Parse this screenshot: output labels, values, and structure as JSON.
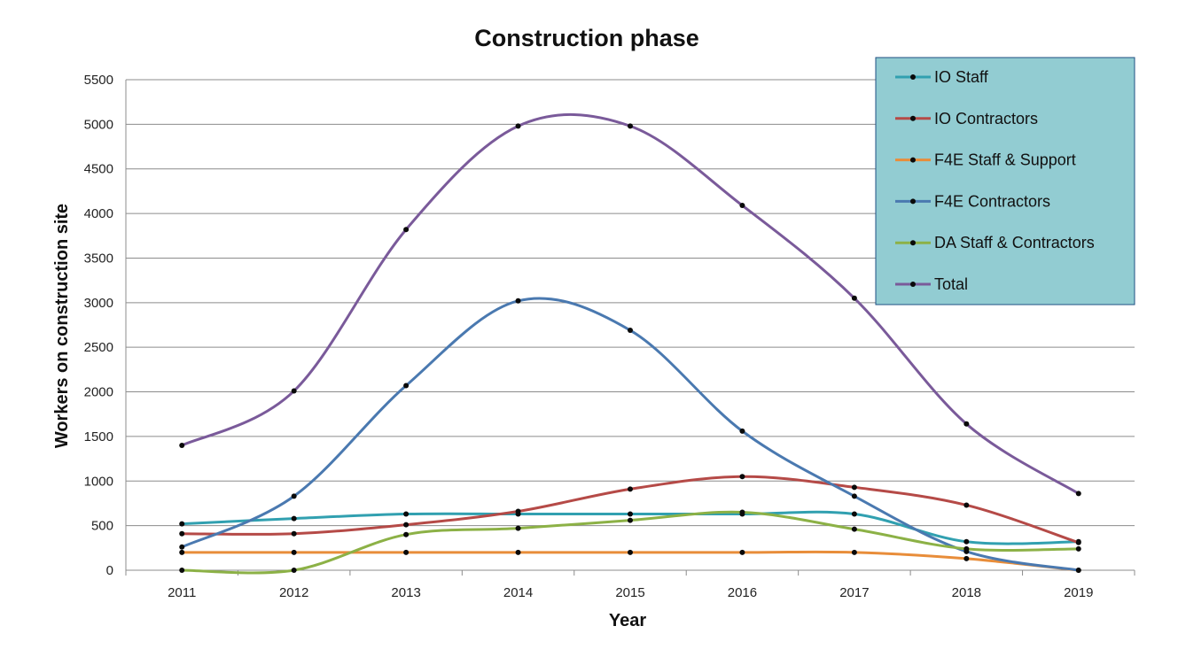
{
  "chart_data": {
    "type": "line",
    "title": "Construction phase",
    "xlabel": "Year",
    "ylabel": "Workers on construction site",
    "categories": [
      "2011",
      "2012",
      "2013",
      "2014",
      "2015",
      "2016",
      "2017",
      "2018",
      "2019"
    ],
    "ylim": [
      0,
      5500
    ],
    "yticks": [
      0,
      500,
      1000,
      1500,
      2000,
      2500,
      3000,
      3500,
      4000,
      4500,
      5000,
      5500
    ],
    "grid": true,
    "smooth": true,
    "legend_position": "top-right",
    "series": [
      {
        "name": "IO Staff",
        "color": "#31a0b0",
        "values": [
          520,
          580,
          630,
          630,
          630,
          630,
          630,
          320,
          320
        ]
      },
      {
        "name": "IO Contractors",
        "color": "#b54a47",
        "values": [
          410,
          410,
          510,
          660,
          910,
          1050,
          930,
          730,
          310
        ]
      },
      {
        "name": "F4E Staff & Support",
        "color": "#e88d3a",
        "values": [
          200,
          200,
          200,
          200,
          200,
          200,
          200,
          130,
          0
        ]
      },
      {
        "name": "F4E Contractors",
        "color": "#4a79b0",
        "values": [
          260,
          830,
          2070,
          3020,
          2690,
          1560,
          830,
          210,
          0
        ]
      },
      {
        "name": "DA Staff & Contractors",
        "color": "#8cb146",
        "values": [
          0,
          0,
          400,
          470,
          560,
          650,
          460,
          240,
          240
        ]
      },
      {
        "name": "Total",
        "color": "#7a5a9a",
        "values": [
          1400,
          2010,
          3820,
          4980,
          4980,
          4090,
          3050,
          1640,
          860
        ]
      }
    ]
  },
  "colors": {
    "legend_background": "#92ccd2",
    "legend_border": "#1f4f83",
    "gridline": "#8c8c8c",
    "marker": "#0a0a0a"
  }
}
